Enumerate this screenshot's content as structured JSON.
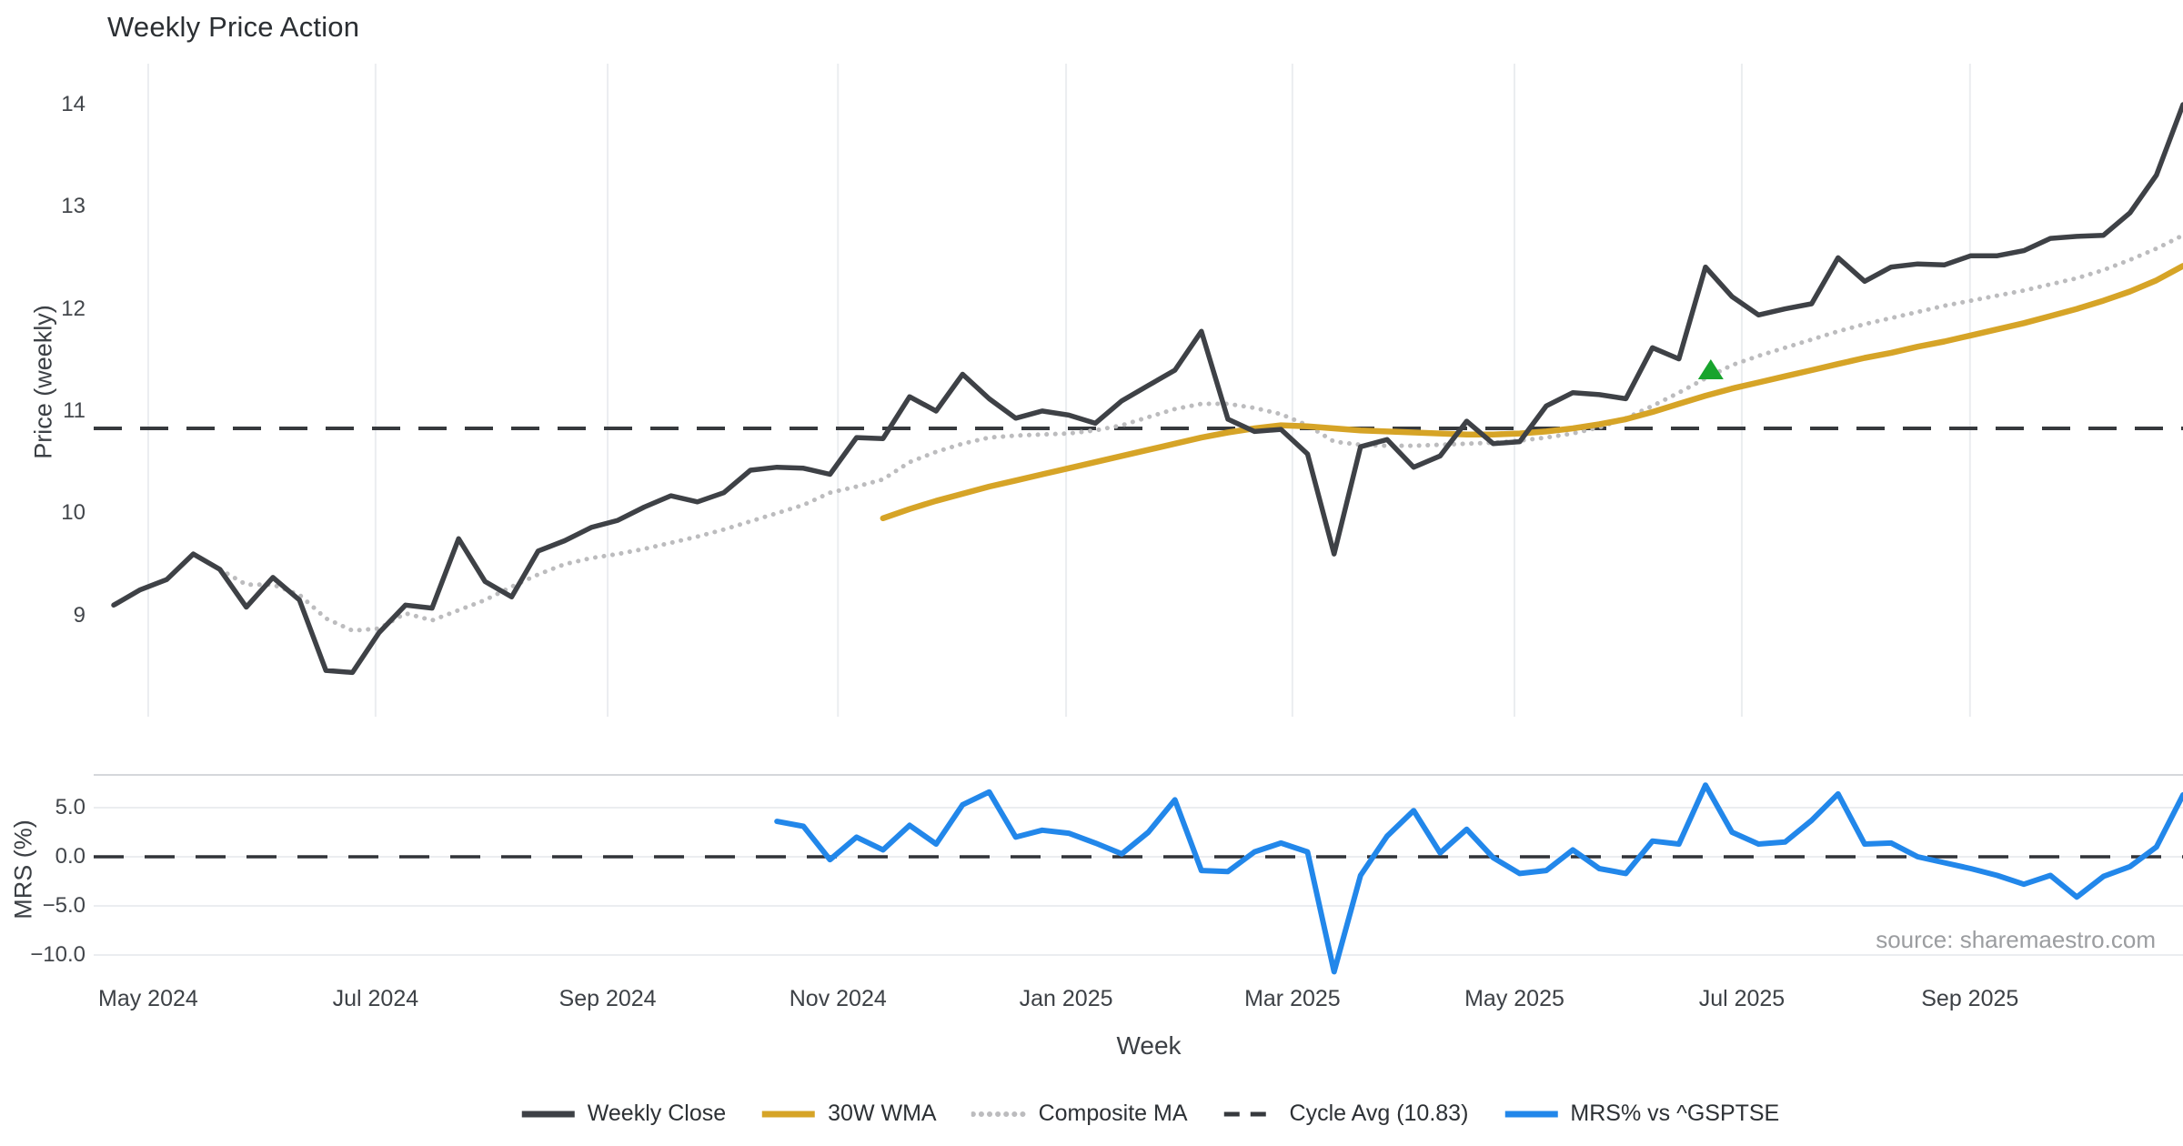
{
  "title": "Weekly Price Action",
  "source_note": "source: sharemaestro.com",
  "colors": {
    "weekly_close": "#3e4146",
    "wma_30w": "#d6a427",
    "composite_ma": "#bcbcbe",
    "cycle_avg": "#36393d",
    "mrs": "#2287ea",
    "signal_marker": "#18a42d",
    "grid": "#ebedf0",
    "spine": "#d5d7db",
    "zero_line": "#303338"
  },
  "legend": [
    {
      "label": "Weekly Close",
      "style": "solid",
      "color_key": "weekly_close"
    },
    {
      "label": "30W WMA",
      "style": "solid",
      "color_key": "wma_30w"
    },
    {
      "label": "Composite MA",
      "style": "dot",
      "color_key": "composite_ma"
    },
    {
      "label": "Cycle Avg (10.83)",
      "style": "dash",
      "color_key": "cycle_avg"
    },
    {
      "label": "MRS% vs ^GSPTSE",
      "style": "solid",
      "color_key": "mrs"
    }
  ],
  "chart_data": {
    "type": "line",
    "title": "Weekly Price Action",
    "xlabel": "Week",
    "x_unit": "weekly index from late Apr 2024",
    "x_ticks": [
      {
        "label": "May 2024",
        "week": 1.3
      },
      {
        "label": "Jul 2024",
        "week": 9.87
      },
      {
        "label": "Sep 2024",
        "week": 18.62
      },
      {
        "label": "Nov 2024",
        "week": 27.3
      },
      {
        "label": "Jan 2025",
        "week": 35.9
      },
      {
        "label": "Mar 2025",
        "week": 44.43
      },
      {
        "label": "May 2025",
        "week": 52.8
      },
      {
        "label": "Jul 2025",
        "week": 61.37
      },
      {
        "label": "Sep 2025",
        "week": 69.97
      }
    ],
    "panels": [
      {
        "ylabel": "Price (weekly)",
        "ylim": [
          8.0,
          14.5
        ],
        "yticks": [
          {
            "v": 14,
            "label": "14"
          },
          {
            "v": 13,
            "label": "13"
          },
          {
            "v": 12,
            "label": "12"
          },
          {
            "v": 11,
            "label": "11"
          },
          {
            "v": 10,
            "label": "10"
          },
          {
            "v": 9,
            "label": "9"
          }
        ],
        "reference_line": {
          "name": "Cycle Avg (10.83)",
          "value": 10.83,
          "style": "dash",
          "color_key": "cycle_avg"
        },
        "signal_marker": {
          "shape": "triangle-up",
          "week": 60.2,
          "value": 11.4,
          "color_key": "signal_marker"
        },
        "series": [
          {
            "name": "Composite MA",
            "style": "dot",
            "color_key": "composite_ma",
            "width": 5,
            "start_week": 4,
            "values": [
              9.45,
              9.3,
              9.3,
              9.2,
              8.97,
              8.85,
              8.87,
              9.02,
              8.95,
              9.05,
              9.15,
              9.28,
              9.4,
              9.5,
              9.56,
              9.6,
              9.65,
              9.71,
              9.77,
              9.84,
              9.92,
              10.0,
              10.08,
              10.2,
              10.26,
              10.33,
              10.5,
              10.6,
              10.68,
              10.74,
              10.76,
              10.77,
              10.78,
              10.81,
              10.86,
              10.94,
              11.02,
              11.07,
              11.07,
              11.03,
              10.97,
              10.86,
              10.7,
              10.67,
              10.66,
              10.66,
              10.67,
              10.68,
              10.69,
              10.71,
              10.74,
              10.78,
              10.84,
              10.93,
              11.05,
              11.18,
              11.32,
              11.45,
              11.54,
              11.62,
              11.7,
              11.78,
              11.85,
              11.91,
              11.97,
              12.03,
              12.08,
              12.13,
              12.18,
              12.24,
              12.3,
              12.38,
              12.48,
              12.59,
              12.72
            ]
          },
          {
            "name": "30W WMA",
            "style": "solid",
            "color_key": "wma_30w",
            "width": 6.5,
            "start_week": 29,
            "values": [
              9.95,
              10.04,
              10.12,
              10.19,
              10.26,
              10.32,
              10.38,
              10.44,
              10.5,
              10.56,
              10.62,
              10.68,
              10.74,
              10.79,
              10.83,
              10.86,
              10.85,
              10.83,
              10.81,
              10.8,
              10.79,
              10.78,
              10.77,
              10.77,
              10.78,
              10.8,
              10.83,
              10.87,
              10.92,
              10.99,
              11.07,
              11.15,
              11.22,
              11.28,
              11.34,
              11.4,
              11.46,
              11.52,
              11.57,
              11.63,
              11.68,
              11.74,
              11.8,
              11.86,
              11.93,
              12.0,
              12.08,
              12.17,
              12.28,
              12.42
            ]
          },
          {
            "name": "Weekly Close",
            "style": "solid",
            "color_key": "weekly_close",
            "width": 5.5,
            "start_week": 0,
            "values": [
              9.1,
              9.25,
              9.35,
              9.6,
              9.45,
              9.08,
              9.37,
              9.15,
              8.46,
              8.44,
              8.83,
              9.1,
              9.07,
              9.75,
              9.33,
              9.18,
              9.63,
              9.73,
              9.86,
              9.93,
              10.06,
              10.17,
              10.11,
              10.2,
              10.42,
              10.45,
              10.44,
              10.38,
              10.74,
              10.73,
              11.14,
              11.0,
              11.36,
              11.12,
              10.93,
              11.0,
              10.96,
              10.88,
              11.1,
              11.25,
              11.4,
              11.78,
              10.92,
              10.8,
              10.82,
              10.58,
              9.6,
              10.65,
              10.72,
              10.45,
              10.56,
              10.9,
              10.68,
              10.7,
              11.05,
              11.18,
              11.16,
              11.12,
              11.62,
              11.51,
              12.41,
              12.12,
              11.94,
              12.0,
              12.05,
              12.5,
              12.27,
              12.41,
              12.44,
              12.43,
              12.52,
              12.52,
              12.57,
              12.69,
              12.71,
              12.72,
              12.94,
              13.31,
              14.0
            ]
          }
        ]
      },
      {
        "ylabel": "MRS (%)",
        "ylim": [
          -12.0,
          8.3
        ],
        "yticks": [
          {
            "v": 5,
            "label": "5.0"
          },
          {
            "v": 0,
            "label": "0.0"
          },
          {
            "v": -5,
            "label": "−5.0"
          },
          {
            "v": -10,
            "label": "−10.0"
          }
        ],
        "zero_line": {
          "value": 0.0,
          "style": "dash",
          "color_key": "zero_line"
        },
        "series": [
          {
            "name": "MRS% vs ^GSPTSE",
            "style": "solid",
            "color_key": "mrs",
            "width": 6,
            "start_week": 25,
            "values": [
              3.6,
              3.1,
              -0.3,
              2.0,
              0.7,
              3.2,
              1.3,
              5.3,
              6.6,
              2.0,
              2.7,
              2.4,
              1.4,
              0.3,
              2.5,
              5.8,
              -1.4,
              -1.5,
              0.5,
              1.4,
              0.5,
              -11.7,
              -1.9,
              2.1,
              4.7,
              0.4,
              2.8,
              -0.1,
              -1.7,
              -1.4,
              0.7,
              -1.2,
              -1.7,
              1.6,
              1.3,
              7.3,
              2.5,
              1.3,
              1.5,
              3.7,
              6.4,
              1.3,
              1.4,
              0.0,
              -0.6,
              -1.2,
              -1.9,
              -2.8,
              -1.9,
              -4.1,
              -2.0,
              -1.0,
              1.0,
              6.3
            ]
          }
        ]
      }
    ]
  }
}
